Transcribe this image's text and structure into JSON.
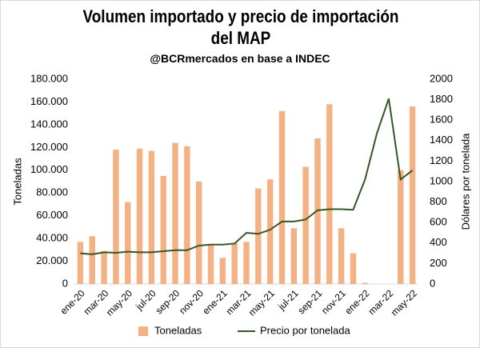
{
  "chart_data": {
    "type": "bar_line",
    "title": "Volumen importado y precio de importación del MAP",
    "subtitle": "@BCRmercados en base a INDEC",
    "y_label": "Toneladas",
    "y2_label": "Dólares por tonelada",
    "categories": [
      "ene-20",
      null,
      "mar-20",
      null,
      "may-20",
      null,
      "jul-20",
      null,
      "sep-20",
      null,
      "nov-20",
      null,
      "ene-21",
      null,
      "mar-21",
      null,
      "may-21",
      null,
      "jul-21",
      null,
      "sep-21",
      null,
      "nov-21",
      null,
      "ene-22",
      null,
      "mar-22",
      null,
      "may-22"
    ],
    "series": [
      {
        "name": "Toneladas",
        "color": "#f4b183",
        "kind": "bar",
        "values": [
          37000,
          42000,
          29000,
          118000,
          72000,
          119000,
          117000,
          95000,
          124000,
          121000,
          90000,
          34000,
          23000,
          36000,
          37000,
          84000,
          92000,
          152000,
          49000,
          103000,
          128000,
          158000,
          49000,
          27000,
          1000,
          0,
          0,
          100000,
          156000
        ]
      },
      {
        "name": "Precio por tonelada",
        "color": "#375623",
        "kind": "line",
        "axis": "y2",
        "values": [
          300,
          290,
          310,
          305,
          315,
          310,
          310,
          320,
          330,
          330,
          375,
          385,
          385,
          395,
          500,
          490,
          530,
          610,
          610,
          630,
          720,
          730,
          730,
          725,
          1020,
          1470,
          1810,
          1020,
          1110
        ]
      }
    ],
    "ylim": [
      0,
      180000
    ],
    "yticks": [
      {
        "value": 0,
        "label": "0"
      },
      {
        "value": 20000,
        "label": "20.000"
      },
      {
        "value": 40000,
        "label": "40.000"
      },
      {
        "value": 60000,
        "label": "60.000"
      },
      {
        "value": 80000,
        "label": "80.000"
      },
      {
        "value": 100000,
        "label": "100.000"
      },
      {
        "value": 120000,
        "label": "120.000"
      },
      {
        "value": 140000,
        "label": "140.000"
      },
      {
        "value": 160000,
        "label": "160.000"
      },
      {
        "value": 180000,
        "label": "180.000"
      }
    ],
    "y2lim": [
      0,
      2000
    ],
    "y2ticks": [
      0,
      200,
      400,
      600,
      800,
      1000,
      1200,
      1400,
      1600,
      1800,
      2000
    ],
    "legend": "bottom"
  }
}
